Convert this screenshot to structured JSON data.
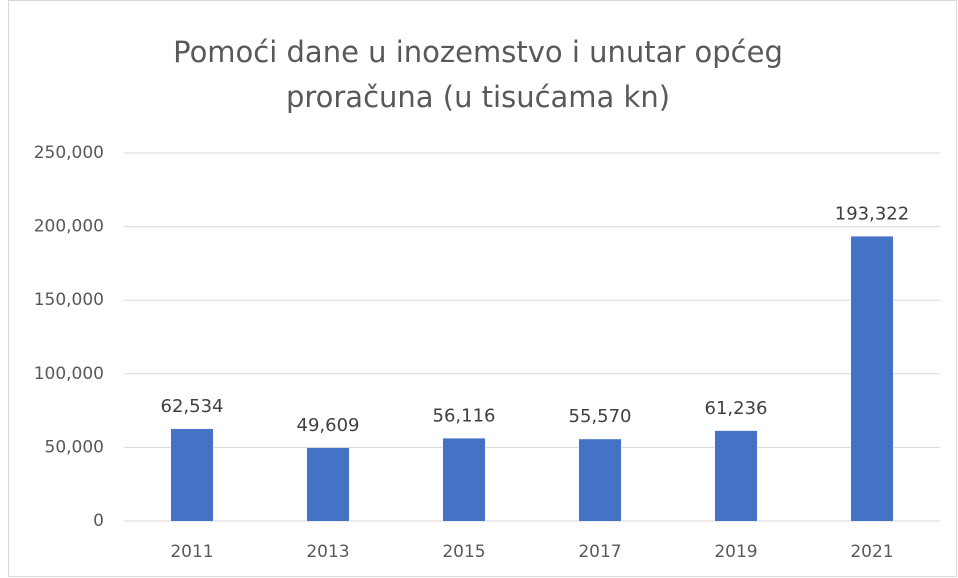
{
  "chart_data": {
    "type": "bar",
    "title": [
      "Pomoći dane u inozemstvo i unutar općeg",
      "proračuna (u tisućama kn)"
    ],
    "categories": [
      "2011",
      "2013",
      "2015",
      "2017",
      "2019",
      "2021"
    ],
    "values": [
      62534,
      49609,
      56116,
      55570,
      61236,
      193322
    ],
    "value_labels": [
      "62,534",
      "49,609",
      "56,116",
      "55,570",
      "61,236",
      "193,322"
    ],
    "color": "#4472c4",
    "ylim": [
      0,
      250000
    ],
    "yticks": [
      0,
      {
        "value": 50000,
        "label": "50,000"
      },
      {
        "value": 100000,
        "label": "100,000"
      },
      {
        "value": 150000,
        "label": "150,000"
      },
      {
        "value": 200000,
        "label": "200,000"
      },
      {
        "value": 250000,
        "label": "250,000"
      }
    ],
    "grid": true
  }
}
